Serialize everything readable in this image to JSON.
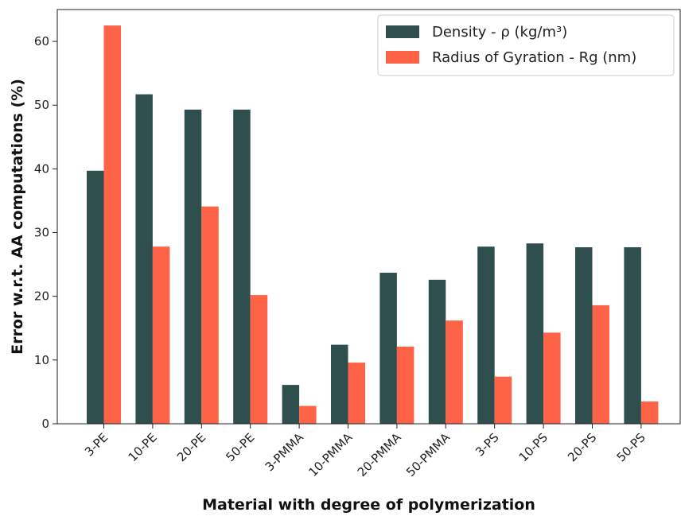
{
  "chart_data": {
    "type": "bar",
    "title": "",
    "xlabel": "Material with degree of polymerization",
    "ylabel": "Error w.r.t. AA computations (%)",
    "ylim": [
      0,
      65
    ],
    "yticks": [
      0,
      10,
      20,
      30,
      40,
      50,
      60
    ],
    "grid": false,
    "legend_position": "top-right",
    "categories": [
      "3-PE",
      "10-PE",
      "20-PE",
      "50-PE",
      "3-PMMA",
      "10-PMMA",
      "20-PMMA",
      "50-PMMA",
      "3-PS",
      "10-PS",
      "20-PS",
      "50-PS"
    ],
    "series": [
      {
        "name": "Density - ρ (kg/m³)",
        "color": "#2f4f4f",
        "values": [
          39.7,
          51.7,
          49.3,
          49.3,
          6.1,
          12.4,
          23.7,
          22.6,
          27.8,
          28.3,
          27.7,
          27.7
        ]
      },
      {
        "name": "Radius of Gyration - Rg (nm)",
        "color": "#ff6347",
        "values": [
          62.5,
          27.8,
          34.1,
          20.2,
          2.8,
          9.6,
          12.1,
          16.2,
          7.4,
          14.3,
          18.6,
          3.5
        ]
      }
    ]
  }
}
